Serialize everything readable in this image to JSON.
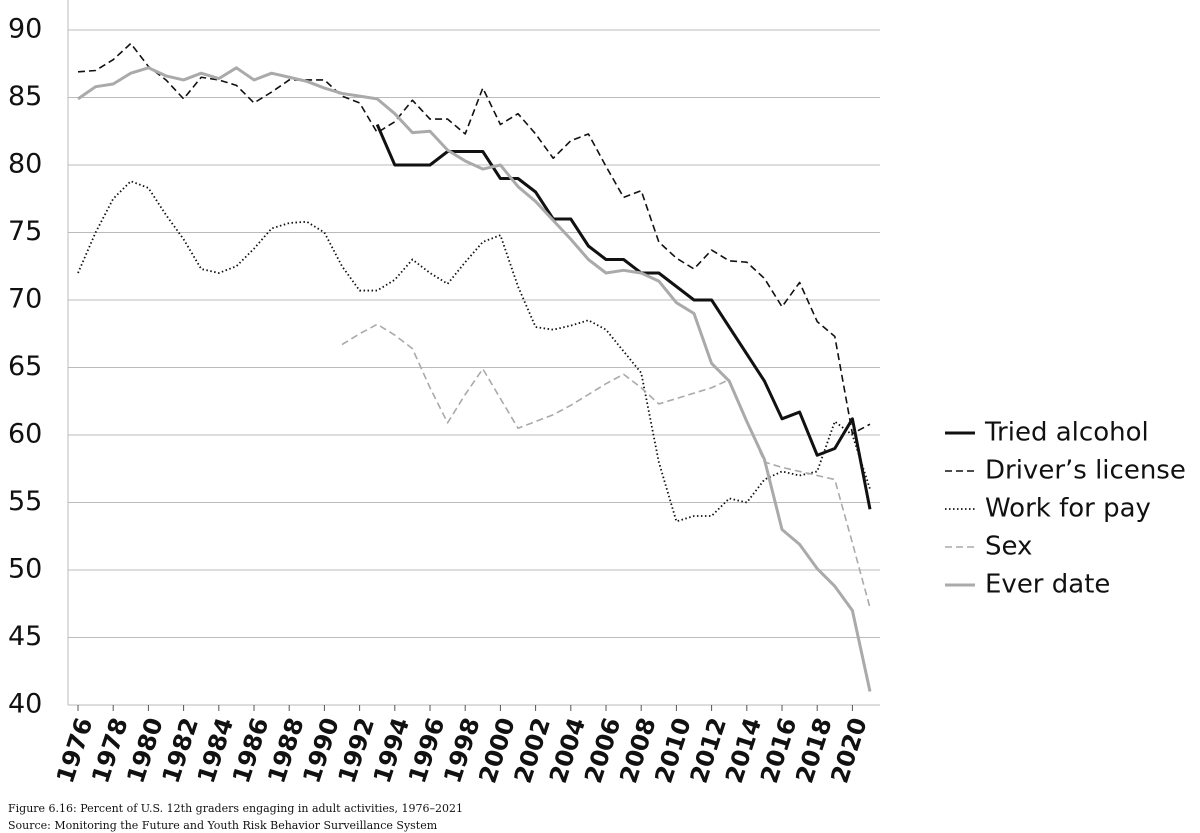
{
  "chart_data": {
    "type": "line",
    "caption": "Figure 6.16: Percent of U.S. 12th graders engaging in adult activities, 1976–2021",
    "source": "Source: Monitoring the Future and Youth Risk Behavior Surveillance System",
    "x": [
      1976,
      1977,
      1978,
      1979,
      1980,
      1981,
      1982,
      1983,
      1984,
      1985,
      1986,
      1987,
      1988,
      1989,
      1990,
      1991,
      1992,
      1993,
      1994,
      1995,
      1996,
      1997,
      1998,
      1999,
      2000,
      2001,
      2002,
      2003,
      2004,
      2005,
      2006,
      2007,
      2008,
      2009,
      2010,
      2011,
      2012,
      2013,
      2014,
      2015,
      2016,
      2017,
      2018,
      2019,
      2020,
      2021
    ],
    "xlim": [
      1976,
      2021
    ],
    "xticks": [
      1976,
      1978,
      1980,
      1982,
      1984,
      1986,
      1988,
      1990,
      1992,
      1994,
      1996,
      1998,
      2000,
      2002,
      2004,
      2006,
      2008,
      2010,
      2012,
      2014,
      2016,
      2018,
      2020
    ],
    "ylim": [
      40,
      90
    ],
    "yticks": [
      40,
      45,
      50,
      55,
      60,
      65,
      70,
      75,
      80,
      85,
      90
    ],
    "grid": true,
    "legend": "right",
    "series": [
      {
        "name": "Tried alcohol",
        "color": "#111111",
        "style": "solid",
        "values": [
          null,
          null,
          null,
          null,
          null,
          null,
          null,
          null,
          null,
          null,
          null,
          null,
          null,
          null,
          null,
          null,
          null,
          83,
          80,
          80,
          80,
          81,
          81,
          81,
          79,
          79,
          78,
          76,
          76,
          74,
          73,
          73,
          72,
          72,
          71,
          70,
          70,
          68,
          66,
          64,
          61.2,
          61.7,
          58.5,
          59,
          61.2,
          54.5
        ]
      },
      {
        "name": "Driver’s license",
        "color": "#111111",
        "style": "dashed",
        "values": [
          86.9,
          87,
          87.8,
          89,
          87.3,
          86.3,
          84.9,
          86.5,
          86.3,
          85.9,
          84.6,
          85.4,
          86.3,
          86.3,
          86.3,
          85.1,
          84.6,
          82.4,
          83.2,
          84.8,
          83.4,
          83.4,
          82.3,
          85.7,
          83,
          83.8,
          82.3,
          80.5,
          81.8,
          82.3,
          79.9,
          77.6,
          78.1,
          74.3,
          73.1,
          72.3,
          73.7,
          72.9,
          72.8,
          71.6,
          69.5,
          71.3,
          68.4,
          67.3,
          60.1,
          60.8
        ]
      },
      {
        "name": "Work for pay",
        "color": "#111111",
        "style": "dotted",
        "values": [
          72,
          75,
          77.5,
          78.8,
          78.3,
          76.3,
          74.5,
          72.3,
          72,
          72.5,
          73.8,
          75.3,
          75.7,
          75.8,
          75,
          72.5,
          70.7,
          70.7,
          71.5,
          73,
          72,
          71.2,
          72.8,
          74.3,
          74.8,
          71,
          68,
          67.8,
          68.1,
          68.5,
          67.8,
          66.2,
          64.6,
          58,
          53.6,
          54,
          54,
          55.3,
          55,
          56.7,
          57.3,
          57,
          57.3,
          61,
          60,
          56
        ]
      },
      {
        "name": "Sex",
        "color": "#aaaaaa",
        "style": "dashed",
        "values": [
          null,
          null,
          null,
          null,
          null,
          null,
          null,
          null,
          null,
          null,
          null,
          null,
          null,
          null,
          null,
          66.7,
          67.5,
          68.2,
          67.4,
          66.4,
          63.5,
          60.9,
          63,
          64.9,
          62.7,
          60.5,
          61,
          61.5,
          62.2,
          63,
          63.8,
          64.5,
          63.5,
          62.3,
          62.7,
          63.1,
          63.5,
          64.1,
          61,
          58,
          57.6,
          57.3,
          57,
          56.7,
          52,
          47.2
        ]
      },
      {
        "name": "Ever date",
        "color": "#aaaaaa",
        "style": "solid",
        "values": [
          84.9,
          85.8,
          86,
          86.8,
          87.2,
          86.6,
          86.3,
          86.8,
          86.4,
          87.2,
          86.3,
          86.8,
          86.5,
          86.2,
          85.7,
          85.3,
          85.1,
          84.9,
          83.8,
          82.4,
          82.5,
          81.1,
          80.3,
          79.7,
          80,
          78.4,
          77.3,
          75.9,
          74.5,
          73,
          72,
          72.2,
          72,
          71.4,
          69.8,
          69,
          65.3,
          64,
          61,
          58.2,
          53,
          51.9,
          50.1,
          48.8,
          47,
          41
        ]
      }
    ]
  }
}
